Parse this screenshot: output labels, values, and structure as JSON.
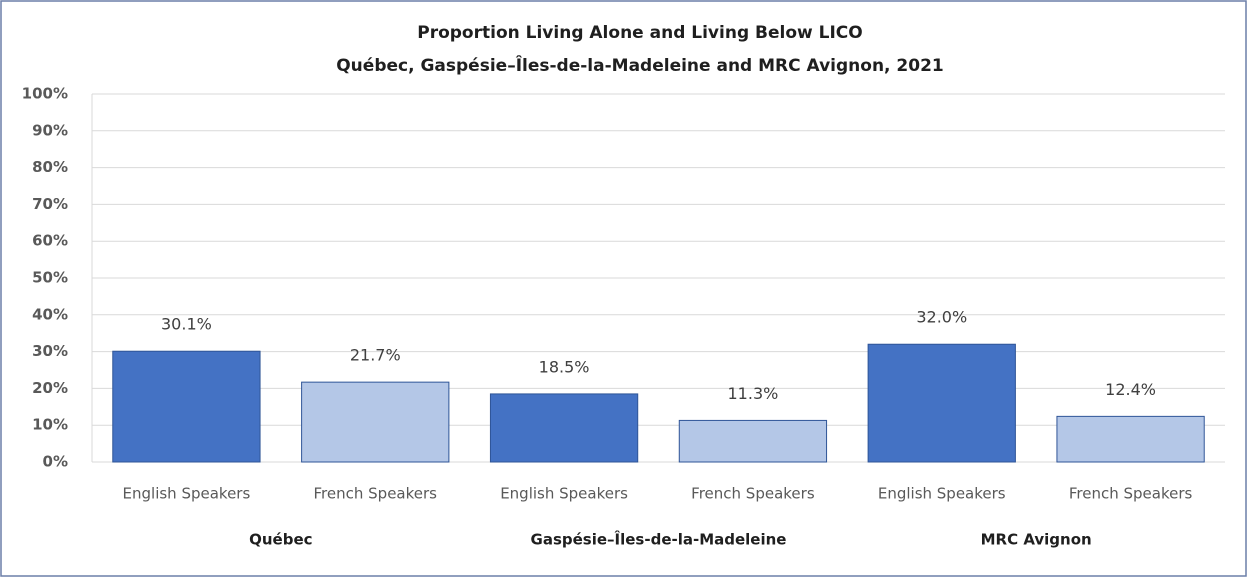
{
  "chart_data": {
    "type": "bar",
    "title": "Proportion Living Alone and Living Below LICO",
    "subtitle": "Québec, Gaspésie–Îles-de-la-Madeleine  and MRC Avignon, 2021",
    "categories": [
      "Québec",
      "Gaspésie–Îles-de-la-Madeleine",
      "MRC Avignon"
    ],
    "series": [
      {
        "name": "English Speakers",
        "color": "#4472c4",
        "values": [
          30.1,
          18.5,
          32.0
        ],
        "value_labels": [
          "30.1%",
          "18.5%",
          "32.0%"
        ]
      },
      {
        "name": "French Speakers",
        "color": "#b4c7e7",
        "values": [
          21.7,
          11.3,
          12.4
        ],
        "value_labels": [
          "21.7%",
          "11.3%",
          "12.4%"
        ]
      }
    ],
    "ylim": [
      0,
      100
    ],
    "yticks": [
      {
        "value": 0,
        "label": "0%"
      },
      {
        "value": 10,
        "label": "10%"
      },
      {
        "value": 20,
        "label": "20%"
      },
      {
        "value": 30,
        "label": "30%"
      },
      {
        "value": 40,
        "label": "40%"
      },
      {
        "value": 50,
        "label": "50%"
      },
      {
        "value": 60,
        "label": "60%"
      },
      {
        "value": 70,
        "label": "70%"
      },
      {
        "value": 80,
        "label": "80%"
      },
      {
        "value": 90,
        "label": "90%"
      },
      {
        "value": 100,
        "label": "100%"
      }
    ],
    "grid": true
  }
}
